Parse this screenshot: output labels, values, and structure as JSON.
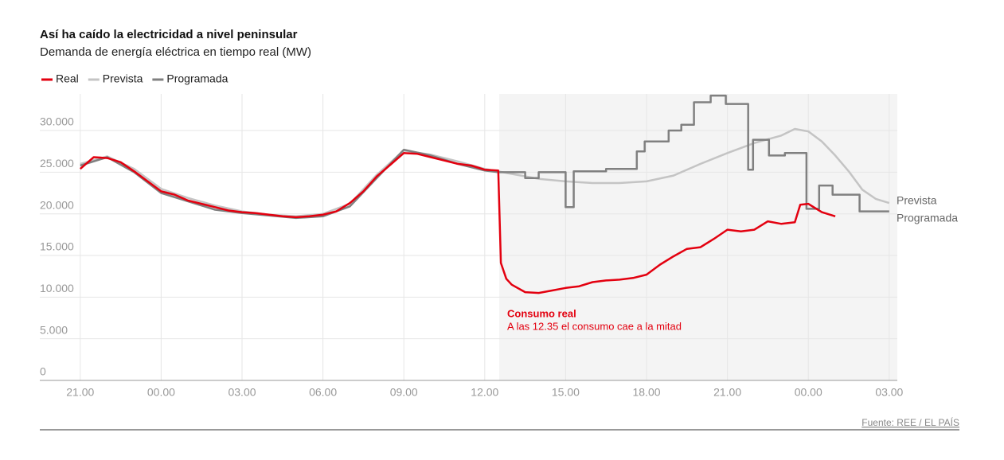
{
  "chart_data": {
    "type": "line",
    "title": "Así ha caído la electricidad a nivel peninsular",
    "subtitle": "Demanda de energía eléctrica en tiempo real (MW)",
    "annotation": {
      "title": "Consumo real",
      "text": "A las 12.35 el consumo cae a la mitad"
    },
    "source": "Fuente: REE / EL PAÍS",
    "xlim": [
      -1.5,
      30.3
    ],
    "xticks": [
      {
        "value": 0,
        "label": "21.00"
      },
      {
        "value": 3,
        "label": "00.00"
      },
      {
        "value": 6,
        "label": "03.00"
      },
      {
        "value": 9,
        "label": "06.00"
      },
      {
        "value": 12,
        "label": "09.00"
      },
      {
        "value": 15,
        "label": "12.00"
      },
      {
        "value": 18,
        "label": "15.00"
      },
      {
        "value": 21,
        "label": "18.00"
      },
      {
        "value": 24,
        "label": "21.00"
      },
      {
        "value": 27,
        "label": "00.00"
      },
      {
        "value": 30,
        "label": "03.00"
      }
    ],
    "ylim": [
      0,
      34400
    ],
    "yticks": [
      0,
      {
        "value": 5000,
        "label": "5.000"
      },
      {
        "value": 10000,
        "label": "10.000"
      },
      {
        "value": 15000,
        "label": "15.000"
      },
      {
        "value": 20000,
        "label": "20.000"
      },
      {
        "value": 25000,
        "label": "25.000"
      },
      {
        "value": 30000,
        "label": "30.000"
      }
    ],
    "grid": true,
    "legend": "top-left",
    "series": [
      {
        "name": "Real",
        "color": "#e3000f",
        "x": [
          0,
          0.5,
          1,
          1.5,
          2,
          2.5,
          3,
          3.5,
          4,
          4.5,
          5,
          5.5,
          6,
          6.5,
          7,
          7.5,
          8,
          8.5,
          9,
          9.5,
          10,
          10.5,
          11,
          11.5,
          12,
          12.5,
          13,
          13.5,
          14,
          14.5,
          15,
          15.5,
          15.6,
          15.8,
          16,
          16.5,
          17,
          17.5,
          18,
          18.5,
          19,
          19.5,
          20,
          20.5,
          21,
          21.5,
          22,
          22.5,
          23,
          23.5,
          24,
          24.5,
          25,
          25.5,
          26,
          26.5,
          26.7,
          27,
          27.5,
          28
        ],
        "values": [
          25400,
          26800,
          26700,
          26200,
          25100,
          23900,
          22700,
          22300,
          21600,
          21200,
          20800,
          20400,
          20200,
          20100,
          19900,
          19700,
          19600,
          19700,
          19900,
          20300,
          21300,
          22700,
          24500,
          25900,
          27300,
          27200,
          26800,
          26400,
          26000,
          25800,
          25300,
          25200,
          14100,
          12200,
          11500,
          10600,
          10500,
          10800,
          11100,
          11300,
          11800,
          12000,
          12100,
          12300,
          12700,
          13900,
          14900,
          15800,
          16000,
          17000,
          18100,
          17900,
          18100,
          19100,
          18800,
          19000,
          21100,
          21200,
          20200,
          19700
        ]
      },
      {
        "name": "Prevista",
        "color": "#c4c4c4",
        "x": [
          0,
          1,
          2,
          3,
          4,
          5,
          6,
          7,
          8,
          9,
          10,
          11,
          12,
          13,
          14,
          15,
          15.5,
          16,
          17,
          18,
          19,
          20,
          21,
          22,
          23,
          24,
          25,
          26,
          26.5,
          27,
          27.5,
          28,
          28.5,
          29,
          29.5,
          30
        ],
        "values": [
          26000,
          26900,
          25400,
          23000,
          21900,
          21000,
          20300,
          19900,
          19700,
          20000,
          21200,
          24700,
          27600,
          27100,
          26300,
          25400,
          25100,
          24800,
          24200,
          23900,
          23700,
          23700,
          23900,
          24600,
          26000,
          27300,
          28500,
          29400,
          30200,
          29900,
          28700,
          27000,
          25100,
          22900,
          21800,
          21300
        ]
      },
      {
        "name": "Programada",
        "color": "#808080",
        "x": [
          0,
          1,
          2,
          3,
          4,
          5,
          6,
          7,
          8,
          9,
          10,
          11,
          12,
          13,
          14,
          15,
          15.5,
          16.5,
          16.5,
          17,
          17,
          18,
          18,
          18.3,
          18.3,
          19.5,
          19.5,
          20.64,
          20.64,
          20.93,
          20.93,
          21.82,
          21.82,
          22.29,
          22.29,
          22.76,
          22.76,
          23.38,
          23.38,
          23.94,
          23.94,
          24.77,
          24.77,
          24.95,
          24.95,
          25.54,
          25.54,
          26.13,
          26.13,
          26.93,
          26.93,
          27.4,
          27.4,
          27.9,
          27.9,
          28.9,
          28.9,
          30
        ],
        "values": [
          25800,
          26800,
          25000,
          22500,
          21500,
          20500,
          20100,
          19800,
          19500,
          19700,
          20900,
          24300,
          27700,
          27000,
          26000,
          25200,
          25000,
          25000,
          24300,
          24300,
          25000,
          25000,
          20800,
          20800,
          25100,
          25100,
          25400,
          25400,
          27500,
          27500,
          28700,
          28700,
          30000,
          30000,
          30700,
          30700,
          33400,
          33400,
          34200,
          34200,
          33200,
          33200,
          25300,
          25300,
          28900,
          28900,
          27000,
          27000,
          27300,
          27300,
          20600,
          20600,
          23400,
          23400,
          22300,
          22300,
          20300,
          20300
        ]
      }
    ]
  }
}
